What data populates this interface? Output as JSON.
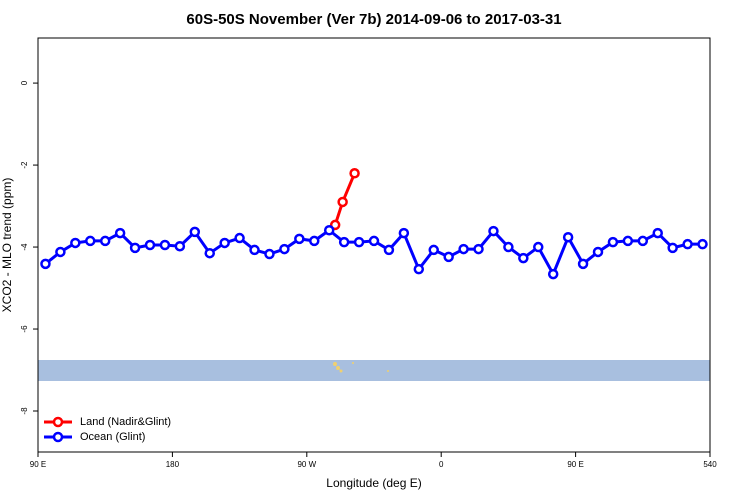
{
  "chart_data": {
    "type": "line",
    "title": "60S-50S November (Ver 7b)   2014-09-06 to 2017-03-31",
    "x_label": "Longitude (deg E)",
    "y_label": "XCO2 - MLO trend (ppm)",
    "xlim": [
      90,
      540
    ],
    "ylim": [
      -9,
      1.1
    ],
    "xticks": [
      {
        "value": 90,
        "label": "90 E"
      },
      180,
      {
        "value": 270,
        "label": "90 W"
      },
      {
        "value": 360,
        "label": "0"
      },
      {
        "value": 450,
        "label": "90 E"
      },
      540
    ],
    "yticks": [
      0,
      -2,
      -4,
      -6,
      -8
    ],
    "legend": "bottom-left",
    "series": [
      {
        "name": "Land (Nadir&Glint)",
        "color": "#ff0000",
        "x": [
          289,
          294,
          302
        ],
        "values": [
          -3.46,
          -2.9,
          -2.2
        ]
      },
      {
        "name": "Ocean (Glint)",
        "color": "#0000ff",
        "x": [
          95,
          105,
          115,
          125,
          135,
          145,
          155,
          165,
          175,
          185,
          195,
          205,
          215,
          225,
          235,
          245,
          255,
          265,
          275,
          285,
          295,
          305,
          315,
          325,
          335,
          345,
          355,
          365,
          375,
          385,
          395,
          405,
          415,
          425,
          435,
          445,
          455,
          465,
          475,
          485,
          495,
          505,
          515,
          525,
          535
        ],
        "values": [
          -4.41,
          -4.12,
          -3.9,
          -3.85,
          -3.85,
          -3.66,
          -4.02,
          -3.95,
          -3.95,
          -3.98,
          -3.63,
          -4.15,
          -3.9,
          -3.78,
          -4.07,
          -4.17,
          -4.05,
          -3.8,
          -3.85,
          -3.59,
          -3.88,
          -3.88,
          -3.85,
          -4.07,
          -3.66,
          -4.54,
          -4.07,
          -4.24,
          -4.05,
          -4.05,
          -3.61,
          -4.0,
          -4.27,
          -4.0,
          -4.66,
          -3.76,
          -4.41,
          -4.12,
          -3.88,
          -3.85,
          -3.85,
          -3.66,
          -4.02,
          -3.93,
          -3.93
        ]
      }
    ]
  }
}
